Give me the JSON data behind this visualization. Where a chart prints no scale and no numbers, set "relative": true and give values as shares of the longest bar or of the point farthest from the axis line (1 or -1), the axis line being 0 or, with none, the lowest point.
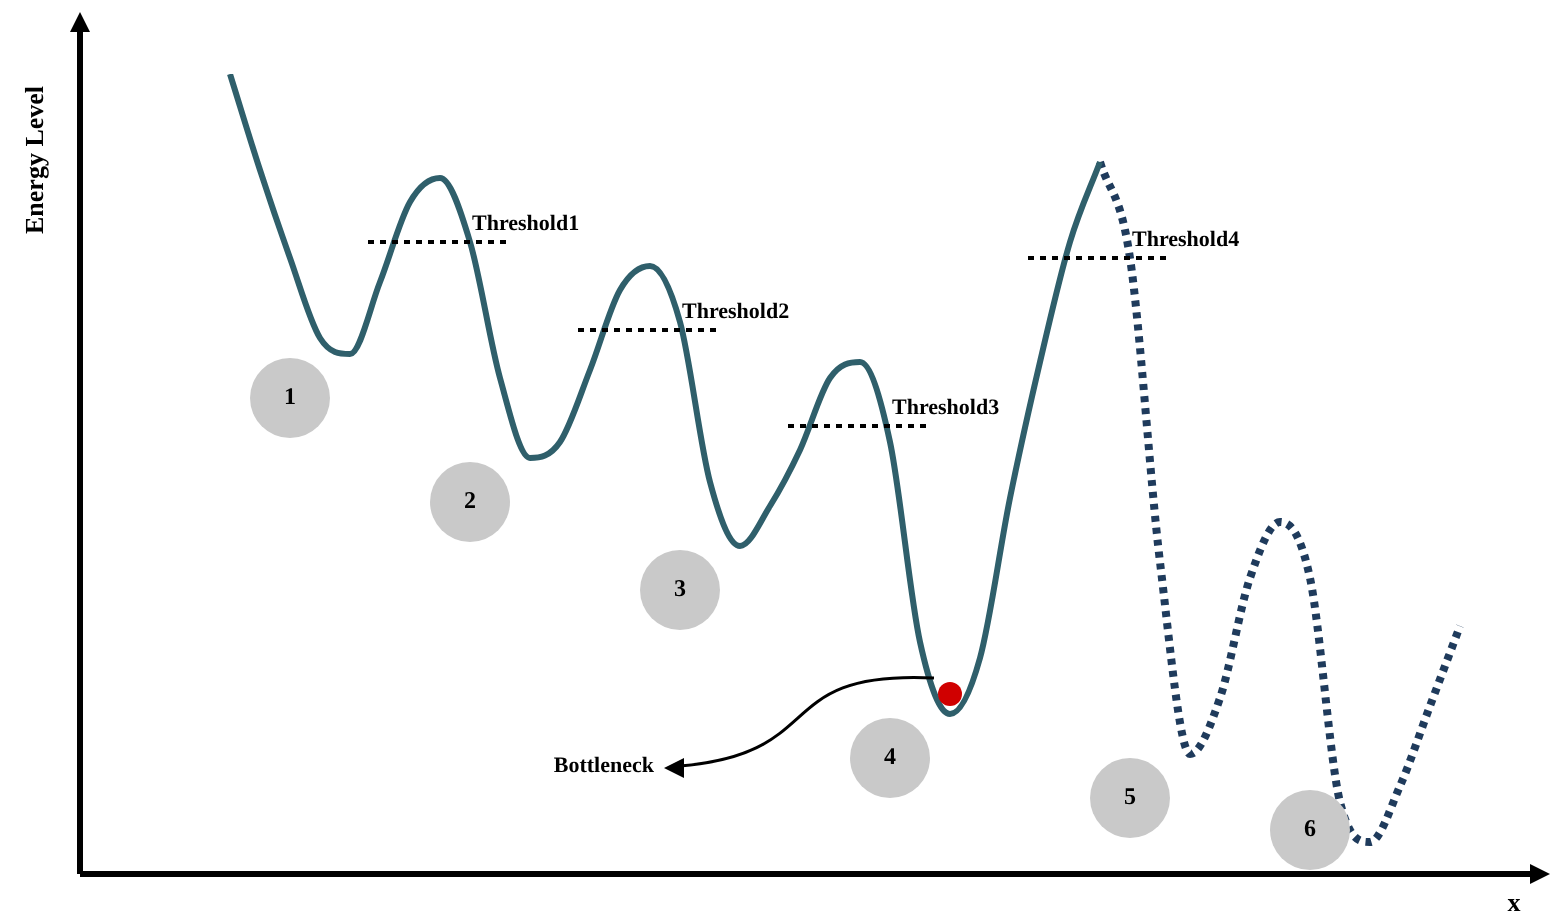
{
  "chart_data": {
    "type": "line",
    "ylabel": "Energy Level",
    "xlabel": "x",
    "relative": true,
    "marker": "none",
    "legend": false,
    "categories": [
      null,
      null,
      null,
      null,
      null,
      null,
      null,
      null,
      null,
      null,
      null,
      null,
      null,
      null,
      null,
      null,
      null,
      null,
      null,
      null,
      null,
      null,
      null,
      null,
      null,
      null,
      null,
      null,
      null,
      null,
      null,
      null,
      null,
      null,
      null,
      null,
      null,
      null,
      null,
      null,
      null,
      null,
      null,
      null,
      null,
      null,
      null,
      null,
      null,
      null
    ],
    "series": [
      {
        "color": "#2f5f6b",
        "line_style": "solid",
        "values": [
          null,
          null,
          null,
          null,
          null,
          1.0,
          0.88,
          0.77,
          0.67,
          0.65,
          0.74,
          0.84,
          0.87,
          0.79,
          0.62,
          0.52,
          0.54,
          0.63,
          0.73,
          0.76,
          0.69,
          0.49,
          0.41,
          0.46,
          0.53,
          0.62,
          0.64,
          0.54,
          0.29,
          0.2,
          0.27,
          0.47,
          0.64,
          0.79,
          0.89,
          null,
          null,
          null,
          null,
          null,
          null,
          null,
          null,
          null,
          null,
          null,
          null,
          null,
          null,
          null
        ]
      },
      {
        "color": "#1f3b5c",
        "line_style": "dotted",
        "values": [
          null,
          null,
          null,
          null,
          null,
          null,
          null,
          null,
          null,
          null,
          null,
          null,
          null,
          null,
          null,
          null,
          null,
          null,
          null,
          null,
          null,
          null,
          null,
          null,
          null,
          null,
          null,
          null,
          null,
          null,
          null,
          null,
          null,
          null,
          0.89,
          0.77,
          0.39,
          0.15,
          0.22,
          0.37,
          0.44,
          0.37,
          0.09,
          0.04,
          0.11,
          0.21,
          0.31,
          null,
          null,
          null
        ]
      }
    ],
    "ref_lines": [
      {
        "axis": "y",
        "value": 0.79,
        "label": "Threshold1",
        "line_style": "dotted"
      },
      {
        "axis": "y",
        "value": 0.68,
        "label": "Threshold2",
        "line_style": "dotted"
      },
      {
        "axis": "y",
        "value": 0.56,
        "label": "Threshold3",
        "line_style": "dotted"
      },
      {
        "axis": "y",
        "value": 0.77,
        "label": "Threshold4",
        "line_style": "dotted"
      }
    ],
    "annotations": [
      "1",
      "2",
      "3",
      "4",
      "5",
      "6",
      "Bottleneck"
    ]
  }
}
